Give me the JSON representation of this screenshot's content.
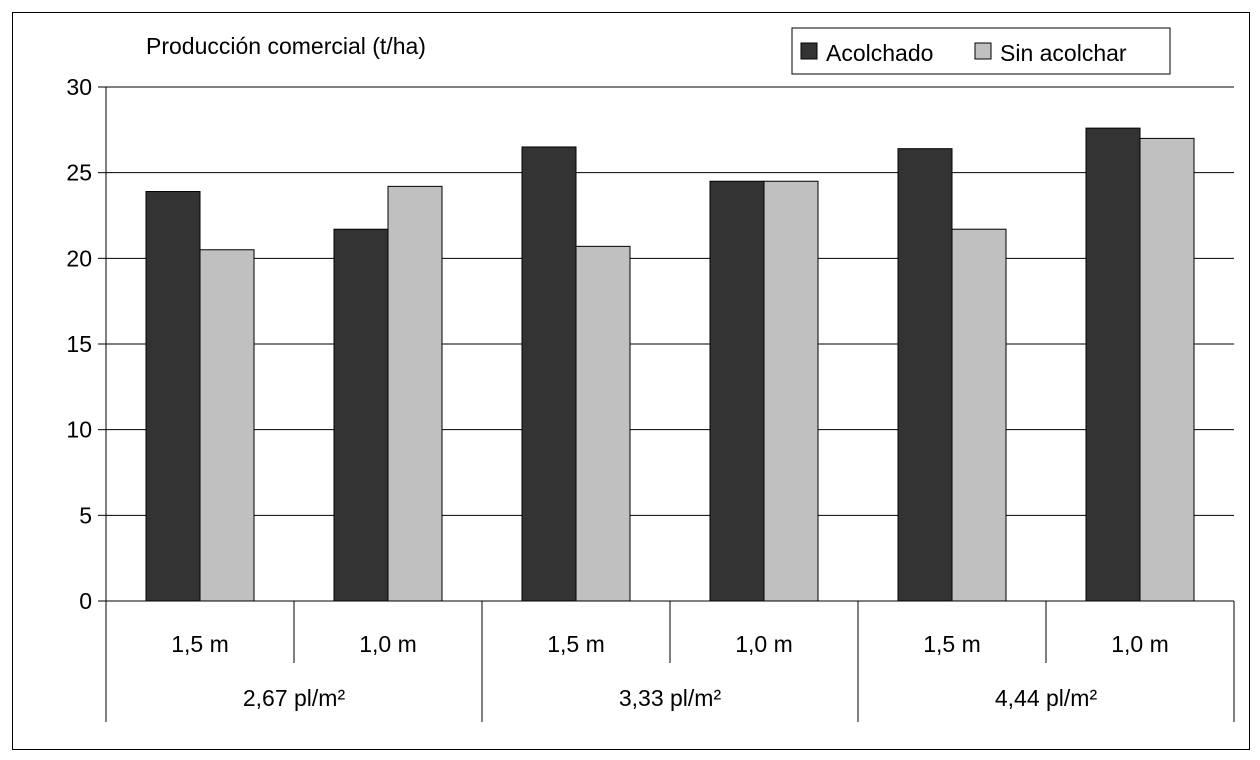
{
  "chart_data": {
    "type": "bar",
    "title": "Producción comercial (t/ha)",
    "categories": [
      "1,5 m",
      "1,0 m",
      "1,5 m",
      "1,0 m",
      "1,5 m",
      "1,0 m"
    ],
    "groups": [
      "2,67 pl/m²",
      "3,33 pl/m²",
      "4,44 pl/m²"
    ],
    "series": [
      {
        "name": "Acolchado",
        "color": "#333333",
        "values": [
          23.9,
          21.7,
          26.5,
          24.5,
          26.4,
          27.6
        ]
      },
      {
        "name": "Sin acolchar",
        "color": "#c0c0c0",
        "values": [
          20.5,
          24.2,
          20.7,
          24.5,
          21.7,
          27.0
        ]
      }
    ],
    "yticks": [
      0,
      5,
      10,
      15,
      20,
      25,
      30
    ],
    "ylim": [
      0,
      30
    ],
    "grid": true,
    "legend_position": "top-right"
  }
}
